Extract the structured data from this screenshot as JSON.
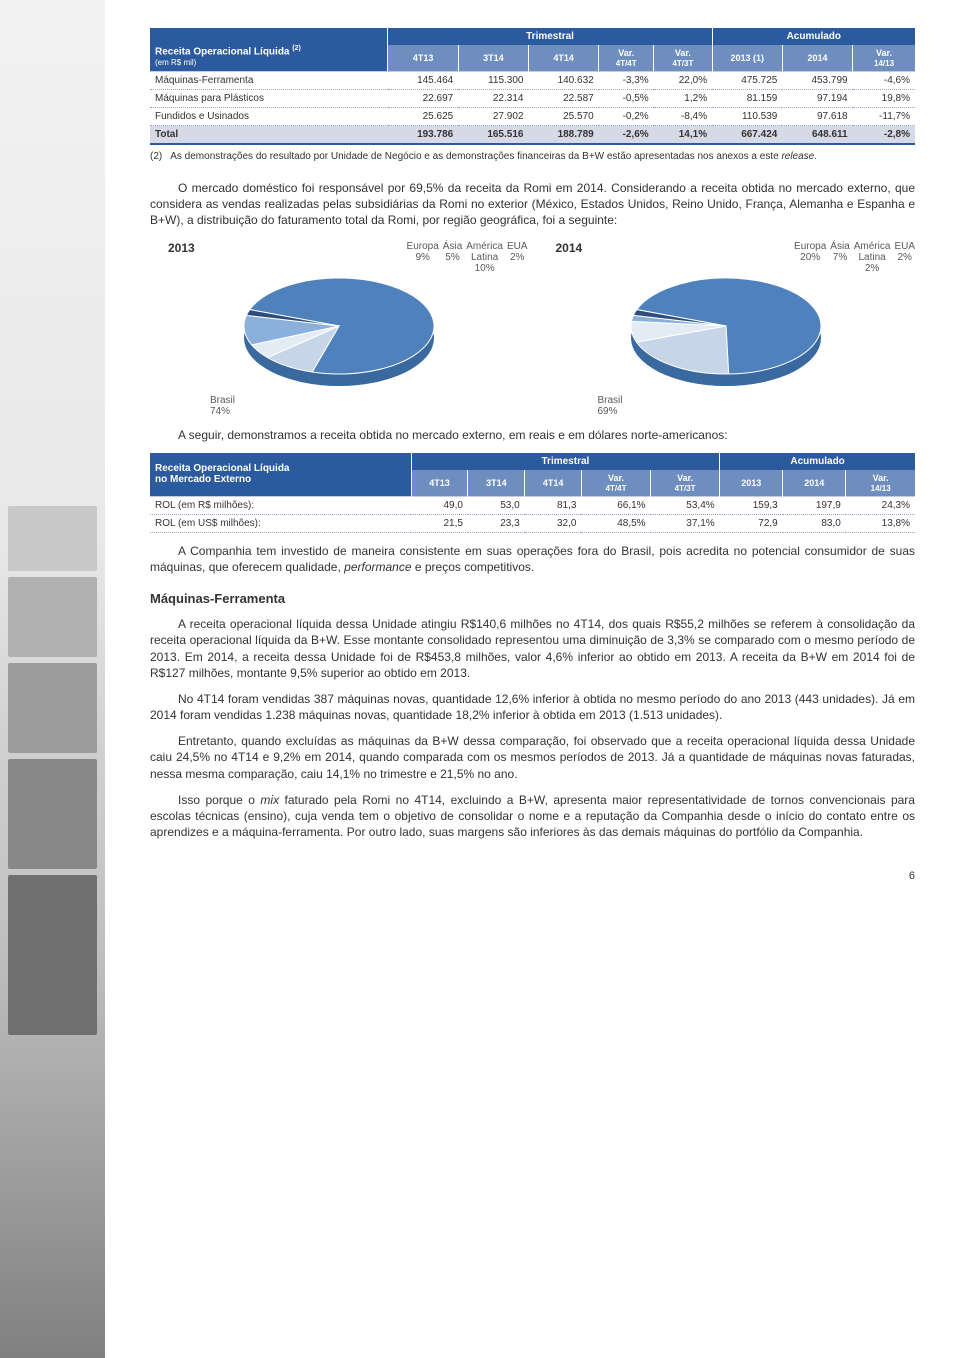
{
  "table1": {
    "header_group_trimestral": "Trimestral",
    "header_group_acumulado": "Acumulado",
    "title_line1": "Receita Operacional Líquida",
    "title_sup": "(2)",
    "title_line2": "(em R$ mil)",
    "cols": [
      "4T13",
      "3T14",
      "4T14",
      "Var. 4T/4T",
      "Var. 4T/3T",
      "2013 (1)",
      "2014",
      "Var. 14/13"
    ],
    "rows": [
      {
        "label": "Máquinas-Ferramenta",
        "c": [
          "145.464",
          "115.300",
          "140.632",
          "-3,3%",
          "22,0%",
          "475.725",
          "453.799",
          "-4,6%"
        ]
      },
      {
        "label": "Máquinas para Plásticos",
        "c": [
          "22.697",
          "22.314",
          "22.587",
          "-0,5%",
          "1,2%",
          "81.159",
          "97.194",
          "19,8%"
        ]
      },
      {
        "label": "Fundidos e Usinados",
        "c": [
          "25.625",
          "27.902",
          "25.570",
          "-0,2%",
          "-8,4%",
          "110.539",
          "97.618",
          "-11,7%"
        ]
      }
    ],
    "total": {
      "label": "Total",
      "c": [
        "193.786",
        "165.516",
        "188.789",
        "-2,6%",
        "14,1%",
        "667.424",
        "648.611",
        "-2,8%"
      ]
    }
  },
  "footnote": {
    "num": "(2)",
    "text": "As demonstrações do resultado por Unidade de Negócio e as demonstrações financeiras da B+W estão apresentadas nos anexos a este ",
    "ital": "release."
  },
  "para1": "O mercado doméstico foi responsável por 69,5% da receita da Romi em 2014. Considerando a receita obtida no mercado externo, que considera as vendas realizadas pelas subsidiárias da Romi no exterior (México, Estados Unidos, Reino Unido, França, Alemanha e Espanha e B+W), a distribuição do faturamento total da Romi, por região geográfica, foi a seguinte:",
  "pie2013": {
    "year": "2013",
    "slices": [
      {
        "name": "Brasil",
        "pct": 74,
        "color": "#4f81bd",
        "label": "Brasil 74%"
      },
      {
        "name": "Europa",
        "pct": 9,
        "color": "#c6d5e8",
        "label": "Europa 9%"
      },
      {
        "name": "Ásia",
        "pct": 5,
        "color": "#e3ebf4",
        "label": "Ásia 5%"
      },
      {
        "name": "América Latina",
        "pct": 10,
        "color": "#8bb0db",
        "label": "América Latina 10%"
      },
      {
        "name": "EUA",
        "pct": 2,
        "color": "#2c4d7a",
        "label": "EUA 2%"
      }
    ],
    "bottom_label": "Brasil\n74%",
    "top_labels": [
      "Europa\n9%",
      "Ásia\n5%",
      "América\nLatina\n10%",
      "EUA\n2%"
    ]
  },
  "pie2014": {
    "year": "2014",
    "slices": [
      {
        "name": "Brasil",
        "pct": 69,
        "color": "#4f81bd",
        "label": "Brasil 69%"
      },
      {
        "name": "Europa",
        "pct": 20,
        "color": "#c6d5e8",
        "label": "Europa 20%"
      },
      {
        "name": "Ásia",
        "pct": 7,
        "color": "#e3ebf4",
        "label": "Ásia 7%"
      },
      {
        "name": "América Latina",
        "pct": 2,
        "color": "#8bb0db",
        "label": "América Latina 2%"
      },
      {
        "name": "EUA",
        "pct": 2,
        "color": "#2c4d7a",
        "label": "EUA 2%"
      }
    ],
    "bottom_label": "Brasil\n69%",
    "top_labels": [
      "Europa\n20%",
      "Ásia\n7%",
      "América\nLatina\n2%",
      "EUA\n2%"
    ]
  },
  "para2": "A seguir, demonstramos a receita obtida no mercado externo, em reais e em dólares norte-americanos:",
  "table2": {
    "title_line1": "Receita Operacional Líquida",
    "title_line2": "no Mercado Externo",
    "header_group_trimestral": "Trimestral",
    "header_group_acumulado": "Acumulado",
    "cols": [
      "4T13",
      "3T14",
      "4T14",
      "Var. 4T/4T",
      "Var. 4T/3T",
      "2013",
      "2014",
      "Var. 14/13"
    ],
    "rows": [
      {
        "label": "ROL (em R$ milhões):",
        "c": [
          "49,0",
          "53,0",
          "81,3",
          "66,1%",
          "53,4%",
          "159,3",
          "197,9",
          "24,3%"
        ]
      },
      {
        "label": "ROL (em US$ milhões):",
        "c": [
          "21,5",
          "23,3",
          "32,0",
          "48,5%",
          "37,1%",
          "72,9",
          "83,0",
          "13,8%"
        ]
      }
    ]
  },
  "para3": "A Companhia tem investido de maneira consistente em suas operações fora do Brasil, pois acredita no potencial consumidor de suas máquinas, que oferecem qualidade, ",
  "para3_ital": "performance",
  "para3_tail": " e preços competitivos.",
  "sec_title": "Máquinas-Ferramenta",
  "para4": "A receita operacional líquida dessa Unidade atingiu R$140,6 milhões no 4T14, dos quais R$55,2 milhões se referem à consolidação da receita operacional líquida da B+W. Esse montante consolidado representou uma diminuição de 3,3% se comparado com o mesmo período de 2013. Em 2014, a receita dessa Unidade foi de R$453,8 milhões, valor 4,6% inferior ao obtido em 2013. A receita da B+W em 2014 foi de R$127 milhões, montante 9,5% superior ao obtido em 2013.",
  "para5": "No 4T14 foram vendidas 387 máquinas novas, quantidade 12,6% inferior à obtida no mesmo período do ano 2013 (443 unidades). Já em 2014 foram vendidas 1.238 máquinas novas, quantidade 18,2% inferior à obtida em 2013 (1.513 unidades).",
  "para6": "Entretanto, quando excluídas as máquinas da B+W dessa comparação, foi observado que a receita operacional líquida dessa Unidade caiu 24,5% no 4T14 e 9,2% em 2014, quando comparada com os mesmos períodos de 2013. Já a quantidade de máquinas novas faturadas, nessa mesma comparação, caiu 14,1% no trimestre e 21,5% no ano.",
  "para7_a": "Isso porque o ",
  "para7_ital": "mix",
  "para7_b": " faturado pela Romi no 4T14, excluindo a B+W, apresenta maior representatividade de tornos convencionais para escolas técnicas (ensino), cuja venda tem o objetivo de consolidar o nome e a reputação da Companhia desde o início do contato entre os aprendizes e a máquina-ferramenta. Por outro lado, suas margens são inferiores às das demais máquinas do portfólio da Companhia.",
  "page_number": "6"
}
